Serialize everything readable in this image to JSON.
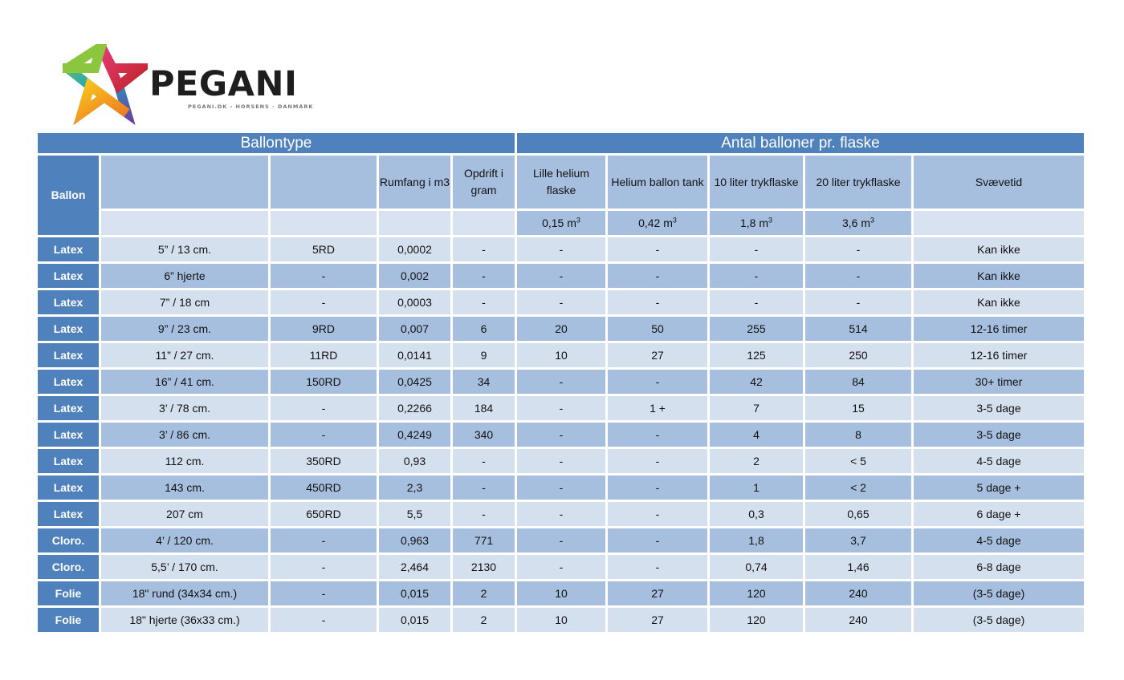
{
  "brand": {
    "name": "PEGANI",
    "tagline": "PEGANI.DK - HORSENS - DANMARK"
  },
  "table": {
    "group_left": "Ballontype",
    "group_right": "Antal balloner pr. flaske",
    "headers": {
      "ballon": "Ballon",
      "rumfang": "Rumfang i m3",
      "opdrift": "Opdrift i gram",
      "lille": "Lille helium flaske",
      "tank": "Helium ballon tank",
      "ten": "10 liter trykflaske",
      "twenty": "20 liter trykflaske",
      "svaeve": "Svævetid"
    },
    "units": {
      "lille": "0,15 m",
      "tank": "0,42 m",
      "ten": "1,8 m",
      "twenty": "3,6 m",
      "exp": "3"
    },
    "rows": [
      [
        "Latex",
        "5” / 13 cm.",
        "5RD",
        "0,0002",
        "-",
        "-",
        "-",
        "-",
        "-",
        "Kan ikke"
      ],
      [
        "Latex",
        "6” hjerte",
        "-",
        "0,002",
        "-",
        "-",
        "-",
        "-",
        "-",
        "Kan ikke"
      ],
      [
        "Latex",
        "7” / 18 cm",
        "-",
        "0,0003",
        "-",
        "-",
        "-",
        "-",
        "-",
        "Kan ikke"
      ],
      [
        "Latex",
        "9” / 23 cm.",
        "9RD",
        "0,007",
        "6",
        "20",
        "50",
        "255",
        "514",
        "12-16 timer"
      ],
      [
        "Latex",
        "11” / 27 cm.",
        "11RD",
        "0,0141",
        "9",
        "10",
        "27",
        "125",
        "250",
        "12-16 timer"
      ],
      [
        "Latex",
        "16” / 41 cm.",
        "150RD",
        "0,0425",
        "34",
        "-",
        "-",
        "42",
        "84",
        "30+ timer"
      ],
      [
        "Latex",
        "3’ / 78 cm.",
        "-",
        "0,2266",
        "184",
        "-",
        "1 +",
        "7",
        "15",
        "3-5 dage"
      ],
      [
        "Latex",
        "3’ / 86 cm.",
        "-",
        "0,4249",
        "340",
        "-",
        "-",
        "4",
        "8",
        "3-5 dage"
      ],
      [
        "Latex",
        "112 cm.",
        "350RD",
        "0,93",
        "-",
        "-",
        "-",
        "2",
        "< 5",
        "4-5 dage"
      ],
      [
        "Latex",
        "143 cm.",
        "450RD",
        "2,3",
        "-",
        "-",
        "-",
        "1",
        "< 2",
        "5 dage +"
      ],
      [
        "Latex",
        "207 cm",
        "650RD",
        "5,5",
        "-",
        "-",
        "-",
        "0,3",
        "0,65",
        "6 dage +"
      ],
      [
        "Cloro.",
        "4’ / 120 cm.",
        "-",
        "0,963",
        "771",
        "-",
        "-",
        "1,8",
        "3,7",
        "4-5 dage"
      ],
      [
        "Cloro.",
        "5,5’ / 170 cm.",
        "-",
        "2,464",
        "2130",
        "-",
        "-",
        "0,74",
        "1,46",
        "6-8 dage"
      ],
      [
        "Folie",
        "18\" rund (34x34 cm.)",
        "-",
        "0,015",
        "2",
        "10",
        "27",
        "120",
        "240",
        "(3-5 dage)"
      ],
      [
        "Folie",
        "18\" hjerte (36x33 cm.)",
        "-",
        "0,015",
        "2",
        "10",
        "27",
        "120",
        "240",
        "(3-5 dage)"
      ]
    ]
  }
}
